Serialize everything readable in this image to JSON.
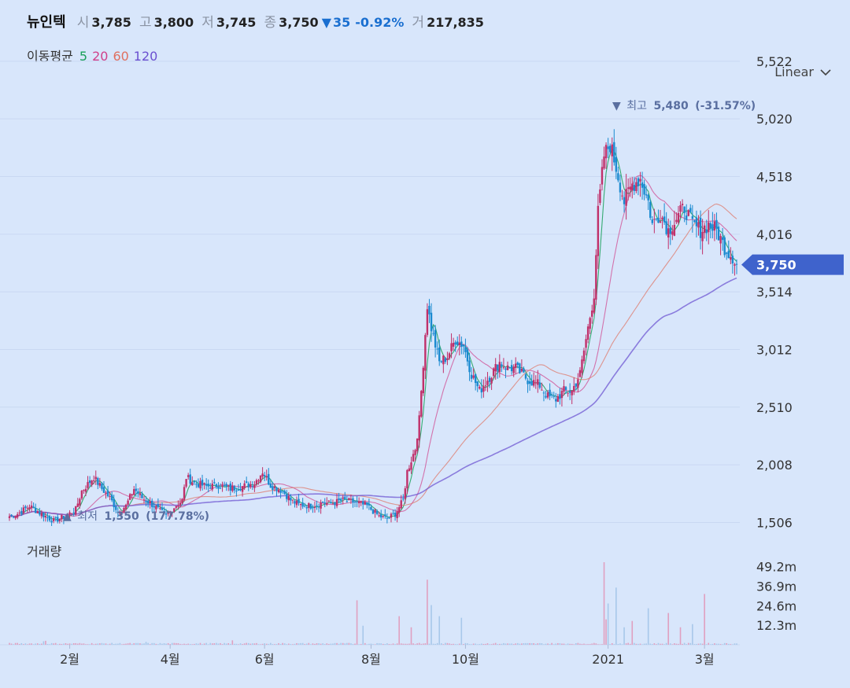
{
  "header": {
    "name": "뉴인텍",
    "open_label": "시",
    "open": "3,785",
    "high_label": "고",
    "high": "3,800",
    "low_label": "저",
    "low": "3,745",
    "close_label": "종",
    "close": "3,750",
    "change_arrow": "▼",
    "change": "35",
    "change_pct": "-0.92%",
    "volume_label": "거",
    "volume": "217,835"
  },
  "moving_average": {
    "title": "이동평균",
    "periods": [
      {
        "label": "5",
        "color": "#1aa05a"
      },
      {
        "label": "20",
        "color": "#d0408a"
      },
      {
        "label": "60",
        "color": "#e07060"
      },
      {
        "label": "120",
        "color": "#6a4fd0"
      }
    ]
  },
  "scale_selector": {
    "label": "Linear",
    "icon": "chevron-down-icon"
  },
  "volume_title": "거래량",
  "colors": {
    "up": "#c0306a",
    "down": "#1a8ad0",
    "bg": "#d8e6fb",
    "price_tag": "#3f63cc"
  },
  "chart_data": {
    "type": "candlestick",
    "price_axis": {
      "ticks": [
        "5,522",
        "5,020",
        "4,518",
        "4,016",
        "3,514",
        "3,012",
        "2,510",
        "2,008",
        "1,506"
      ],
      "ylim": [
        1242,
        5610
      ]
    },
    "x_axis": {
      "ticks": [
        "2월",
        "4월",
        "6월",
        "8월",
        "10월",
        "2021",
        "3월"
      ]
    },
    "volume_axis": {
      "ticks": [
        "49.2m",
        "36.9m",
        "24.6m",
        "12.3m"
      ],
      "ylim": [
        0,
        52000000
      ]
    },
    "current_price": "3,750",
    "annotations": {
      "high": {
        "marker": "▼",
        "label": "최고",
        "value": "5,480",
        "pct": "(-31.57%)"
      },
      "low": {
        "marker": "▲",
        "label": "최저",
        "value": "1,350",
        "pct": "(177.78%)"
      }
    },
    "close_path": [
      [
        0,
        1560
      ],
      [
        4,
        1580
      ],
      [
        10,
        1650
      ],
      [
        14,
        1600
      ],
      [
        18,
        1560
      ],
      [
        22,
        1520
      ],
      [
        28,
        1560
      ],
      [
        33,
        1620
      ],
      [
        36,
        1780
      ],
      [
        42,
        1900
      ],
      [
        46,
        1800
      ],
      [
        50,
        1720
      ],
      [
        54,
        1600
      ],
      [
        58,
        1650
      ],
      [
        62,
        1800
      ],
      [
        66,
        1720
      ],
      [
        72,
        1650
      ],
      [
        78,
        1560
      ],
      [
        82,
        1640
      ],
      [
        86,
        1700
      ],
      [
        88,
        1900
      ],
      [
        92,
        1850
      ],
      [
        98,
        1820
      ],
      [
        104,
        1830
      ],
      [
        110,
        1800
      ],
      [
        116,
        1820
      ],
      [
        122,
        1850
      ],
      [
        126,
        1950
      ],
      [
        130,
        1830
      ],
      [
        136,
        1780
      ],
      [
        140,
        1700
      ],
      [
        144,
        1660
      ],
      [
        150,
        1650
      ],
      [
        156,
        1680
      ],
      [
        160,
        1670
      ],
      [
        166,
        1700
      ],
      [
        172,
        1680
      ],
      [
        178,
        1650
      ],
      [
        184,
        1560
      ],
      [
        188,
        1540
      ],
      [
        192,
        1580
      ],
      [
        196,
        1700
      ],
      [
        198,
        1950
      ],
      [
        200,
        2050
      ],
      [
        202,
        2150
      ],
      [
        204,
        2400
      ],
      [
        206,
        2900
      ],
      [
        208,
        3400
      ],
      [
        210,
        3200
      ],
      [
        214,
        2900
      ],
      [
        218,
        2950
      ],
      [
        222,
        3100
      ],
      [
        226,
        3050
      ],
      [
        230,
        2800
      ],
      [
        234,
        2650
      ],
      [
        238,
        2750
      ],
      [
        244,
        2900
      ],
      [
        248,
        2850
      ],
      [
        252,
        2850
      ],
      [
        258,
        2750
      ],
      [
        264,
        2700
      ],
      [
        268,
        2600
      ],
      [
        272,
        2580
      ],
      [
        276,
        2650
      ],
      [
        280,
        2650
      ],
      [
        284,
        2800
      ],
      [
        288,
        3200
      ],
      [
        291,
        3500
      ],
      [
        293,
        4200
      ],
      [
        296,
        4700
      ],
      [
        299,
        4800
      ],
      [
        302,
        4600
      ],
      [
        306,
        4300
      ],
      [
        310,
        4450
      ],
      [
        314,
        4500
      ],
      [
        318,
        4300
      ],
      [
        320,
        4100
      ],
      [
        324,
        4200
      ],
      [
        328,
        4050
      ],
      [
        332,
        4150
      ],
      [
        336,
        4250
      ],
      [
        340,
        4100
      ],
      [
        344,
        4050
      ],
      [
        348,
        4100
      ],
      [
        352,
        4050
      ],
      [
        356,
        3900
      ],
      [
        360,
        3820
      ],
      [
        362,
        3750
      ]
    ],
    "volume_spikes": [
      [
        17,
        2200000
      ],
      [
        18,
        2500000
      ],
      [
        68,
        1800000
      ],
      [
        111,
        2800000
      ],
      [
        173,
        28000000
      ],
      [
        176,
        12000000
      ],
      [
        194,
        18000000
      ],
      [
        200,
        11000000
      ],
      [
        208,
        41000000
      ],
      [
        210,
        25000000
      ],
      [
        214,
        18000000
      ],
      [
        225,
        17000000
      ],
      [
        296,
        52000000
      ],
      [
        297,
        16000000
      ],
      [
        298,
        26000000
      ],
      [
        302,
        36000000
      ],
      [
        306,
        11000000
      ],
      [
        310,
        15000000
      ],
      [
        318,
        23000000
      ],
      [
        328,
        20000000
      ],
      [
        334,
        11000000
      ],
      [
        340,
        13000000
      ],
      [
        346,
        32000000
      ]
    ]
  }
}
